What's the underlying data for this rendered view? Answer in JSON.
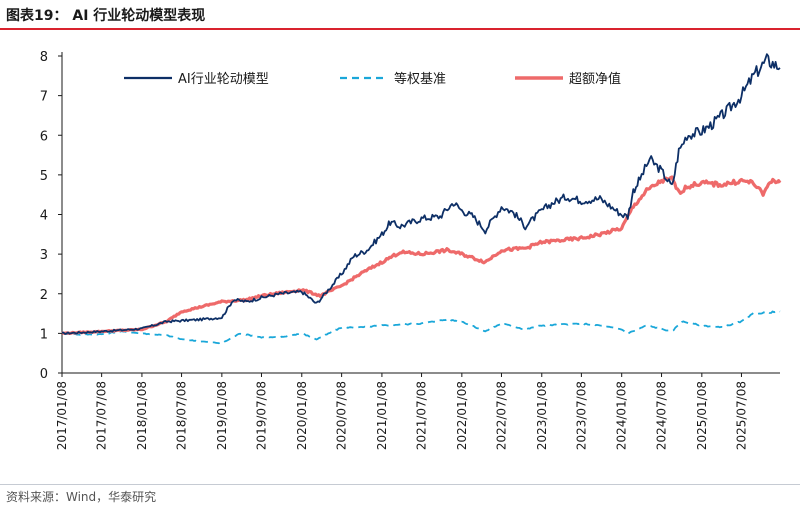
{
  "figure": {
    "title": "图表19：  AI 行业轮动模型表现",
    "source": "资料来源：Wind，华泰研究"
  },
  "colors": {
    "model": "#0d2f66",
    "equal_weight": "#1aa7d9",
    "excess": "#ee6a6a",
    "title_rule": "#d9232e",
    "axis": "#1a1a1a"
  },
  "chart_data": {
    "type": "line",
    "title": "",
    "xlabel": "",
    "ylabel": "",
    "ylim": [
      0,
      8
    ],
    "yticks": [
      0,
      1,
      2,
      3,
      4,
      5,
      6,
      7,
      8
    ],
    "xlim": [
      "2017/01/08",
      "2025/12/31"
    ],
    "xtick_labels": [
      "2017/01/08",
      "2017/07/08",
      "2018/01/08",
      "2018/07/08",
      "2019/01/08",
      "2019/07/08",
      "2020/01/08",
      "2020/07/08",
      "2021/01/08",
      "2021/07/08",
      "2022/01/08",
      "2022/07/08",
      "2023/01/08",
      "2023/07/08",
      "2024/01/08",
      "2024/07/08",
      "2025/01/08",
      "2025/07/08"
    ],
    "grid": false,
    "legend_position": "top",
    "series": [
      {
        "name": "AI行业轮动模型",
        "color": "#0d2f66",
        "style": "solid",
        "points": [
          [
            "2017/01/08",
            1.0
          ],
          [
            "2017/04/01",
            1.02
          ],
          [
            "2017/07/08",
            1.05
          ],
          [
            "2017/10/01",
            1.08
          ],
          [
            "2018/01/08",
            1.12
          ],
          [
            "2018/03/01",
            1.2
          ],
          [
            "2018/05/01",
            1.3
          ],
          [
            "2018/07/08",
            1.32
          ],
          [
            "2018/10/01",
            1.35
          ],
          [
            "2019/01/08",
            1.4
          ],
          [
            "2019/03/01",
            1.85
          ],
          [
            "2019/05/01",
            1.8
          ],
          [
            "2019/07/08",
            1.9
          ],
          [
            "2019/10/01",
            2.0
          ],
          [
            "2020/01/08",
            2.05
          ],
          [
            "2020/02/01",
            1.95
          ],
          [
            "2020/03/15",
            1.75
          ],
          [
            "2020/05/01",
            2.05
          ],
          [
            "2020/07/08",
            2.5
          ],
          [
            "2020/09/01",
            2.95
          ],
          [
            "2020/11/01",
            3.1
          ],
          [
            "2021/01/08",
            3.5
          ],
          [
            "2021/02/15",
            3.8
          ],
          [
            "2021/04/01",
            3.7
          ],
          [
            "2021/07/08",
            3.9
          ],
          [
            "2021/10/01",
            3.95
          ],
          [
            "2021/12/01",
            4.3
          ],
          [
            "2022/01/08",
            4.1
          ],
          [
            "2022/03/01",
            3.95
          ],
          [
            "2022/04/25",
            3.6
          ],
          [
            "2022/06/01",
            3.9
          ],
          [
            "2022/07/08",
            4.2
          ],
          [
            "2022/09/01",
            4.05
          ],
          [
            "2022/10/25",
            3.7
          ],
          [
            "2023/01/08",
            4.1
          ],
          [
            "2023/03/01",
            4.3
          ],
          [
            "2023/05/01",
            4.45
          ],
          [
            "2023/07/08",
            4.35
          ],
          [
            "2023/10/01",
            4.4
          ],
          [
            "2024/01/08",
            4.0
          ],
          [
            "2024/02/05",
            3.95
          ],
          [
            "2024/03/01",
            4.6
          ],
          [
            "2024/04/01",
            4.9
          ],
          [
            "2024/05/15",
            5.4
          ],
          [
            "2024/07/08",
            5.1
          ],
          [
            "2024/08/25",
            4.7
          ],
          [
            "2024/09/25",
            5.6
          ],
          [
            "2024/11/01",
            6.0
          ],
          [
            "2025/01/08",
            6.1
          ],
          [
            "2025/03/01",
            6.3
          ],
          [
            "2025/05/01",
            6.6
          ],
          [
            "2025/07/08",
            7.0
          ],
          [
            "2025/09/01",
            7.5
          ],
          [
            "2025/11/01",
            7.9
          ],
          [
            "2025/12/31",
            7.7
          ]
        ]
      },
      {
        "name": "等权基准",
        "color": "#1aa7d9",
        "style": "dashed",
        "points": [
          [
            "2017/01/08",
            1.0
          ],
          [
            "2017/04/01",
            0.97
          ],
          [
            "2017/07/08",
            0.98
          ],
          [
            "2017/10/01",
            1.05
          ],
          [
            "2018/01/08",
            1.0
          ],
          [
            "2018/05/01",
            0.95
          ],
          [
            "2018/07/08",
            0.85
          ],
          [
            "2018/10/01",
            0.8
          ],
          [
            "2019/01/08",
            0.75
          ],
          [
            "2019/04/01",
            1.0
          ],
          [
            "2019/07/08",
            0.9
          ],
          [
            "2019/10/01",
            0.9
          ],
          [
            "2020/01/08",
            1.0
          ],
          [
            "2020/03/15",
            0.85
          ],
          [
            "2020/07/08",
            1.15
          ],
          [
            "2020/10/01",
            1.15
          ],
          [
            "2021/01/08",
            1.2
          ],
          [
            "2021/07/08",
            1.25
          ],
          [
            "2021/11/01",
            1.35
          ],
          [
            "2022/01/08",
            1.3
          ],
          [
            "2022/04/25",
            1.05
          ],
          [
            "2022/07/08",
            1.25
          ],
          [
            "2022/10/25",
            1.1
          ],
          [
            "2023/01/08",
            1.2
          ],
          [
            "2023/07/08",
            1.25
          ],
          [
            "2023/10/01",
            1.2
          ],
          [
            "2024/01/08",
            1.1
          ],
          [
            "2024/02/05",
            1.0
          ],
          [
            "2024/05/01",
            1.2
          ],
          [
            "2024/08/25",
            1.05
          ],
          [
            "2024/10/08",
            1.3
          ],
          [
            "2025/01/08",
            1.2
          ],
          [
            "2025/04/07",
            1.15
          ],
          [
            "2025/07/08",
            1.3
          ],
          [
            "2025/09/01",
            1.5
          ],
          [
            "2025/12/31",
            1.55
          ]
        ]
      },
      {
        "name": "超额净值",
        "color": "#ee6a6a",
        "style": "solid",
        "points": [
          [
            "2017/01/08",
            1.0
          ],
          [
            "2017/07/08",
            1.05
          ],
          [
            "2018/01/08",
            1.1
          ],
          [
            "2018/05/01",
            1.3
          ],
          [
            "2018/07/08",
            1.55
          ],
          [
            "2019/01/08",
            1.8
          ],
          [
            "2019/05/01",
            1.85
          ],
          [
            "2019/07/08",
            1.95
          ],
          [
            "2020/01/08",
            2.1
          ],
          [
            "2020/04/01",
            1.95
          ],
          [
            "2020/07/08",
            2.2
          ],
          [
            "2020/10/01",
            2.5
          ],
          [
            "2021/01/08",
            2.8
          ],
          [
            "2021/04/01",
            3.05
          ],
          [
            "2021/07/08",
            3.0
          ],
          [
            "2021/11/01",
            3.1
          ],
          [
            "2022/01/08",
            3.0
          ],
          [
            "2022/04/25",
            2.8
          ],
          [
            "2022/07/08",
            3.1
          ],
          [
            "2022/10/25",
            3.15
          ],
          [
            "2023/01/08",
            3.3
          ],
          [
            "2023/07/08",
            3.4
          ],
          [
            "2023/10/01",
            3.5
          ],
          [
            "2024/01/08",
            3.65
          ],
          [
            "2024/03/01",
            4.2
          ],
          [
            "2024/05/01",
            4.6
          ],
          [
            "2024/07/08",
            4.85
          ],
          [
            "2024/08/25",
            4.9
          ],
          [
            "2024/09/25",
            4.55
          ],
          [
            "2024/11/01",
            4.7
          ],
          [
            "2025/01/08",
            4.8
          ],
          [
            "2025/04/07",
            4.75
          ],
          [
            "2025/07/08",
            4.85
          ],
          [
            "2025/09/01",
            4.8
          ],
          [
            "2025/10/15",
            4.5
          ],
          [
            "2025/11/15",
            4.85
          ],
          [
            "2025/12/31",
            4.8
          ]
        ]
      }
    ]
  }
}
